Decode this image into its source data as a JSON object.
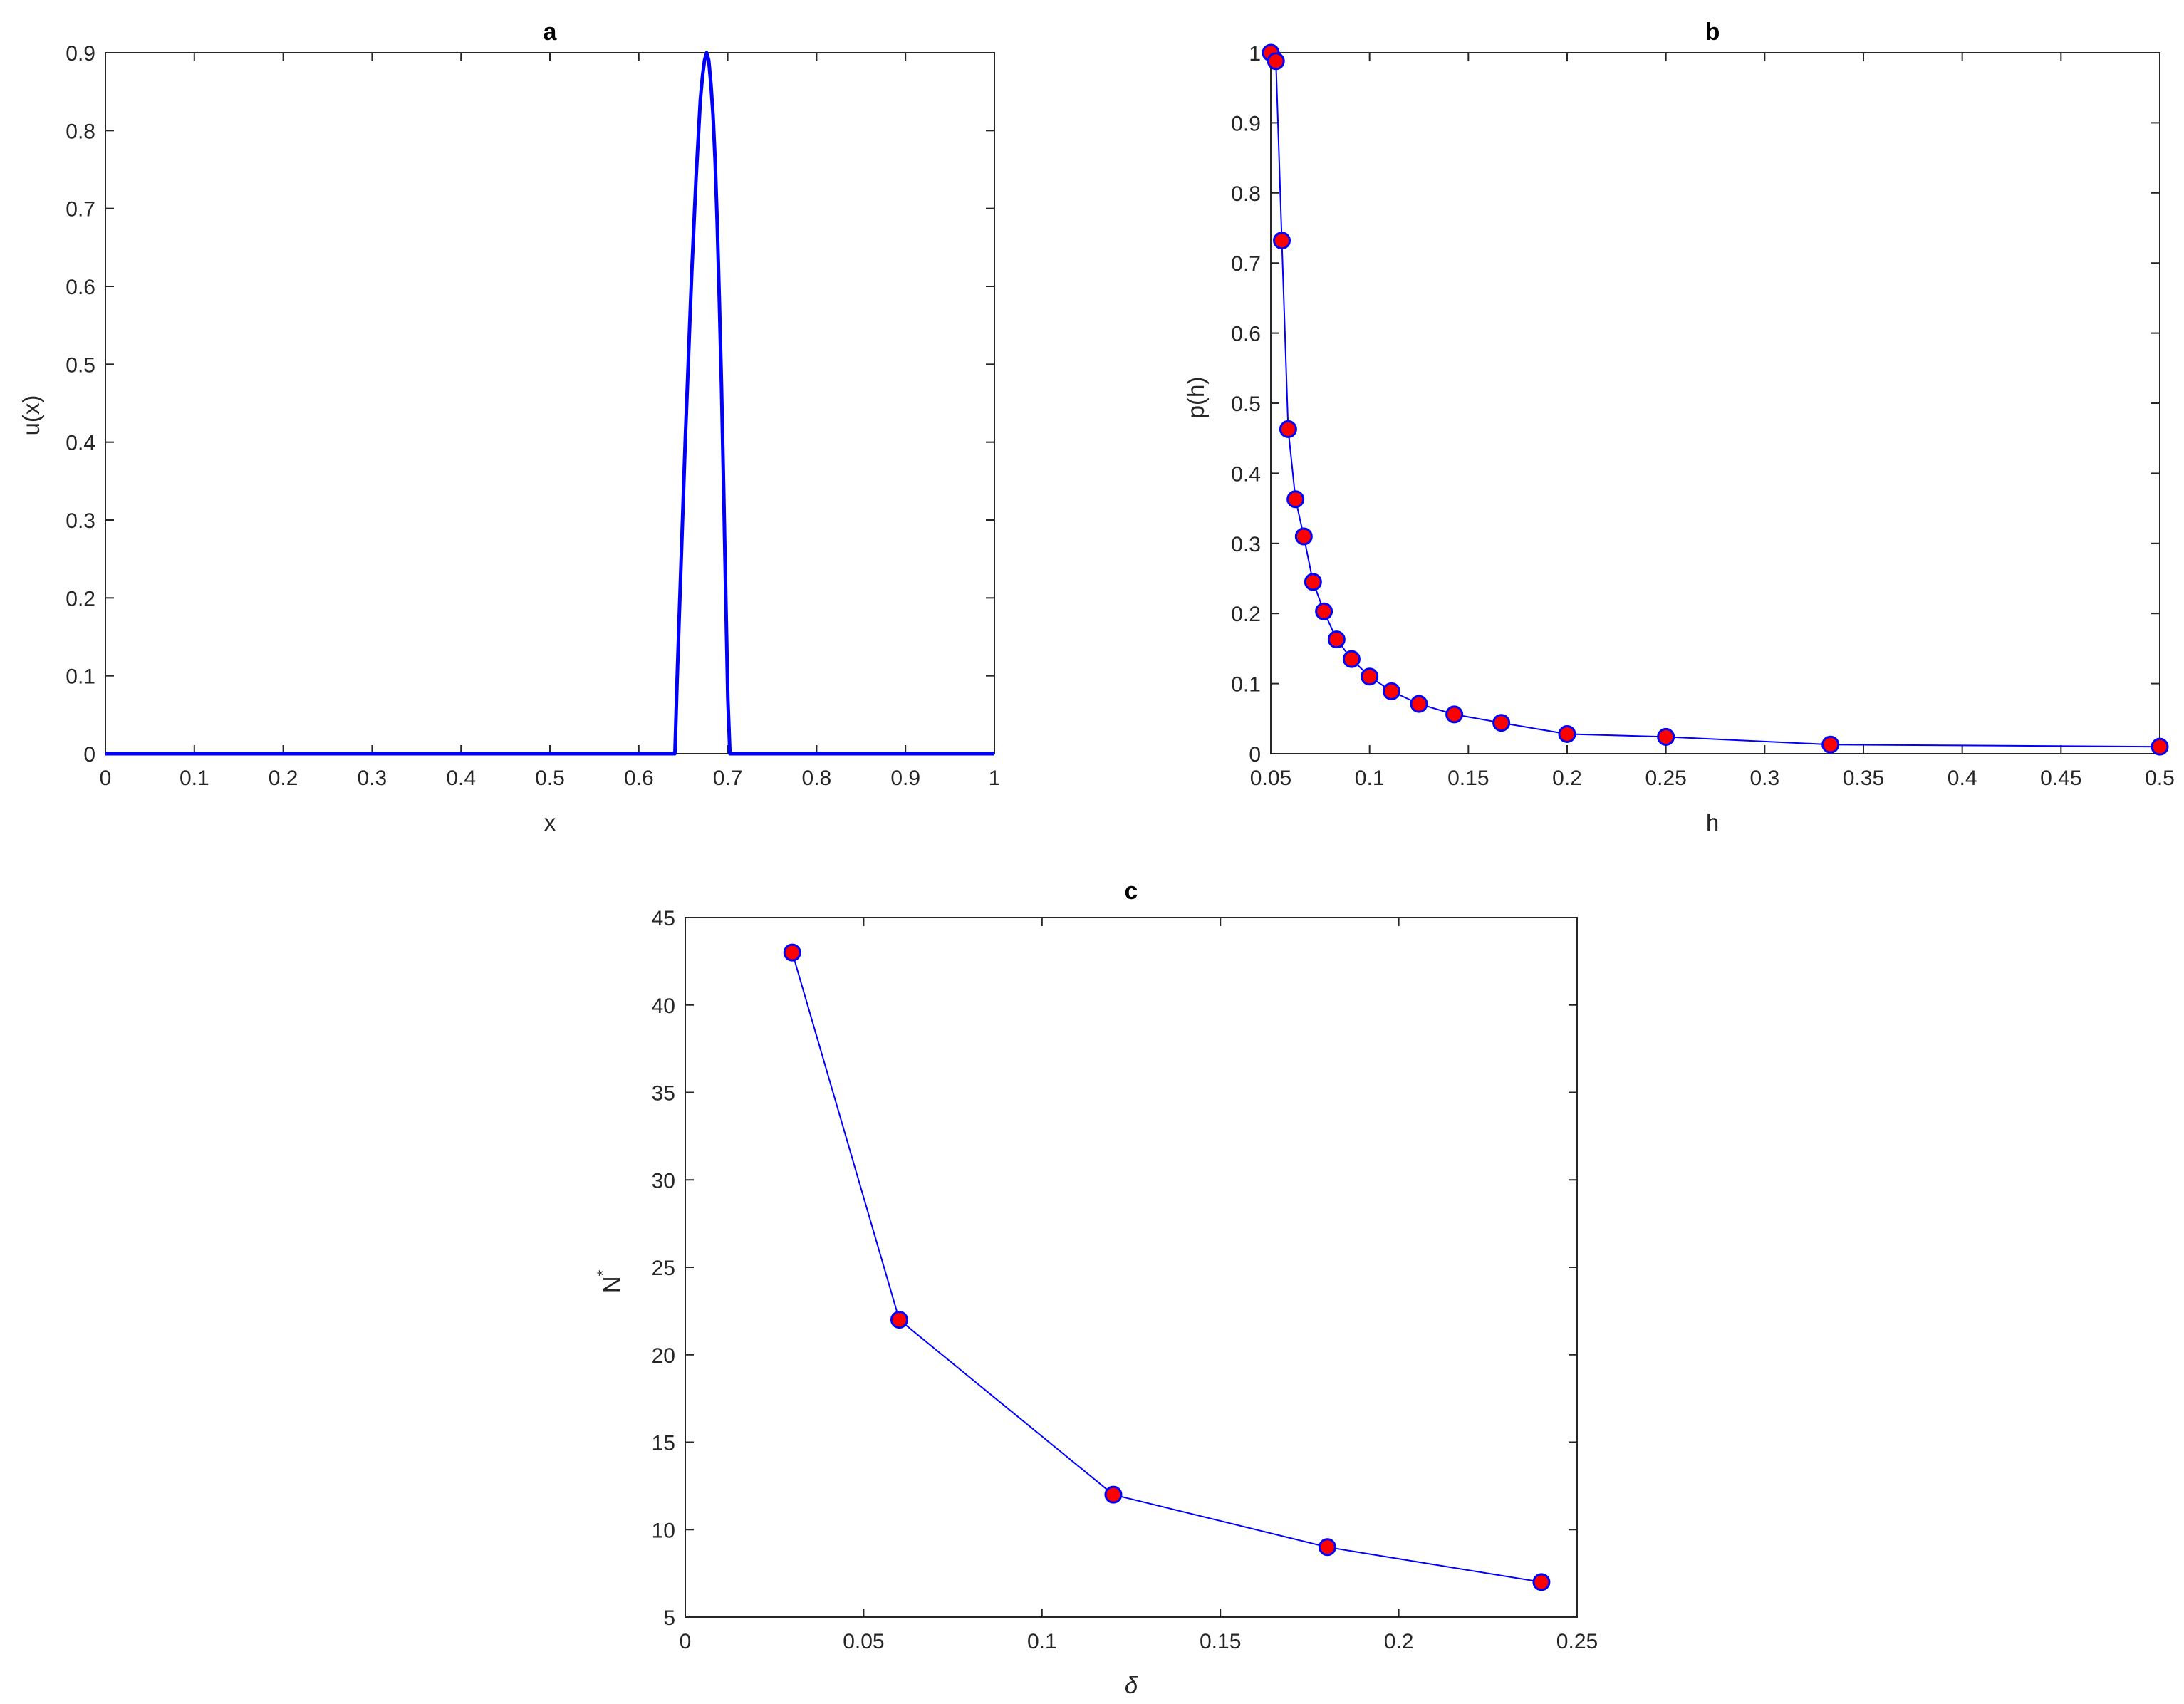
{
  "colors": {
    "line": "#0000ff",
    "marker_fill": "#ff0000",
    "marker_edge": "#0000ff",
    "axes": "#262626"
  },
  "chart_data": [
    {
      "id": "a",
      "type": "line",
      "title": "a",
      "xlabel": "x",
      "ylabel": "u(x)",
      "xlim": [
        0,
        1
      ],
      "ylim": [
        0,
        0.9
      ],
      "xticks": [
        0,
        0.1,
        0.2,
        0.3,
        0.4,
        0.5,
        0.6,
        0.7,
        0.8,
        0.9,
        1
      ],
      "xtick_labels": [
        "0",
        "0.1",
        "0.2",
        "0.3",
        "0.4",
        "0.5",
        "0.6",
        "0.7",
        "0.8",
        "0.9",
        "1"
      ],
      "yticks": [
        0,
        0.1,
        0.2,
        0.3,
        0.4,
        0.5,
        0.6,
        0.7,
        0.8,
        0.9
      ],
      "ytick_labels": [
        "0",
        "0.1",
        "0.2",
        "0.3",
        "0.4",
        "0.5",
        "0.6",
        "0.7",
        "0.8",
        "0.9"
      ],
      "grid": false,
      "series": [
        {
          "x": [
            0,
            0.6406,
            0.6429,
            0.6453,
            0.6477,
            0.6501,
            0.6525,
            0.6549,
            0.6572,
            0.6596,
            0.662,
            0.6644,
            0.6668,
            0.6692,
            0.6716,
            0.6739,
            0.6763,
            0.6787,
            0.6811,
            0.6835,
            0.6859,
            0.6882,
            0.6906,
            0.693,
            0.6954,
            0.6978,
            0.7002,
            0.7025,
            1
          ],
          "y": [
            0,
            0,
            0.087,
            0.17,
            0.25,
            0.33,
            0.41,
            0.48,
            0.55,
            0.62,
            0.68,
            0.74,
            0.79,
            0.84,
            0.87,
            0.89,
            0.9,
            0.89,
            0.86,
            0.82,
            0.76,
            0.68,
            0.58,
            0.47,
            0.34,
            0.2,
            0.07,
            0,
            0
          ]
        }
      ]
    },
    {
      "id": "b",
      "type": "line",
      "title": "b",
      "xlabel": "h",
      "ylabel": "p(h)",
      "xlim": [
        0.05,
        0.5
      ],
      "ylim": [
        0,
        1
      ],
      "xticks": [
        0.05,
        0.1,
        0.15,
        0.2,
        0.25,
        0.3,
        0.35,
        0.4,
        0.45,
        0.5
      ],
      "xtick_labels": [
        "0.05",
        "0.1",
        "0.15",
        "0.2",
        "0.25",
        "0.3",
        "0.35",
        "0.4",
        "0.45",
        "0.5"
      ],
      "yticks": [
        0,
        0.1,
        0.2,
        0.3,
        0.4,
        0.5,
        0.6,
        0.7,
        0.8,
        0.9,
        1
      ],
      "ytick_labels": [
        "0",
        "0.1",
        "0.2",
        "0.3",
        "0.4",
        "0.5",
        "0.6",
        "0.7",
        "0.8",
        "0.9",
        "1"
      ],
      "grid": false,
      "markers": true,
      "series": [
        {
          "x": [
            0.05,
            0.0526,
            0.0556,
            0.0588,
            0.0625,
            0.0667,
            0.0714,
            0.0769,
            0.0833,
            0.0909,
            0.1,
            0.1111,
            0.125,
            0.1429,
            0.1667,
            0.2,
            0.25,
            0.3333,
            0.5
          ],
          "y": [
            1.0,
            0.988,
            0.732,
            0.463,
            0.363,
            0.31,
            0.245,
            0.203,
            0.163,
            0.135,
            0.11,
            0.089,
            0.071,
            0.056,
            0.044,
            0.028,
            0.024,
            0.013,
            0.01
          ]
        }
      ]
    },
    {
      "id": "c",
      "type": "line",
      "title": "c",
      "xlabel": "δ",
      "ylabel": "N",
      "ylabel_sup": "*",
      "xlim": [
        0,
        0.25
      ],
      "ylim": [
        5,
        45
      ],
      "xticks": [
        0,
        0.05,
        0.1,
        0.15,
        0.2,
        0.25
      ],
      "xtick_labels": [
        "0",
        "0.05",
        "0.1",
        "0.15",
        "0.2",
        "0.25"
      ],
      "yticks": [
        5,
        10,
        15,
        20,
        25,
        30,
        35,
        40,
        45
      ],
      "ytick_labels": [
        "5",
        "10",
        "15",
        "20",
        "25",
        "30",
        "35",
        "40",
        "45"
      ],
      "grid": false,
      "markers": true,
      "series": [
        {
          "x": [
            0.03,
            0.06,
            0.12,
            0.18,
            0.24
          ],
          "y": [
            43,
            22,
            12,
            9,
            7
          ]
        }
      ]
    }
  ]
}
